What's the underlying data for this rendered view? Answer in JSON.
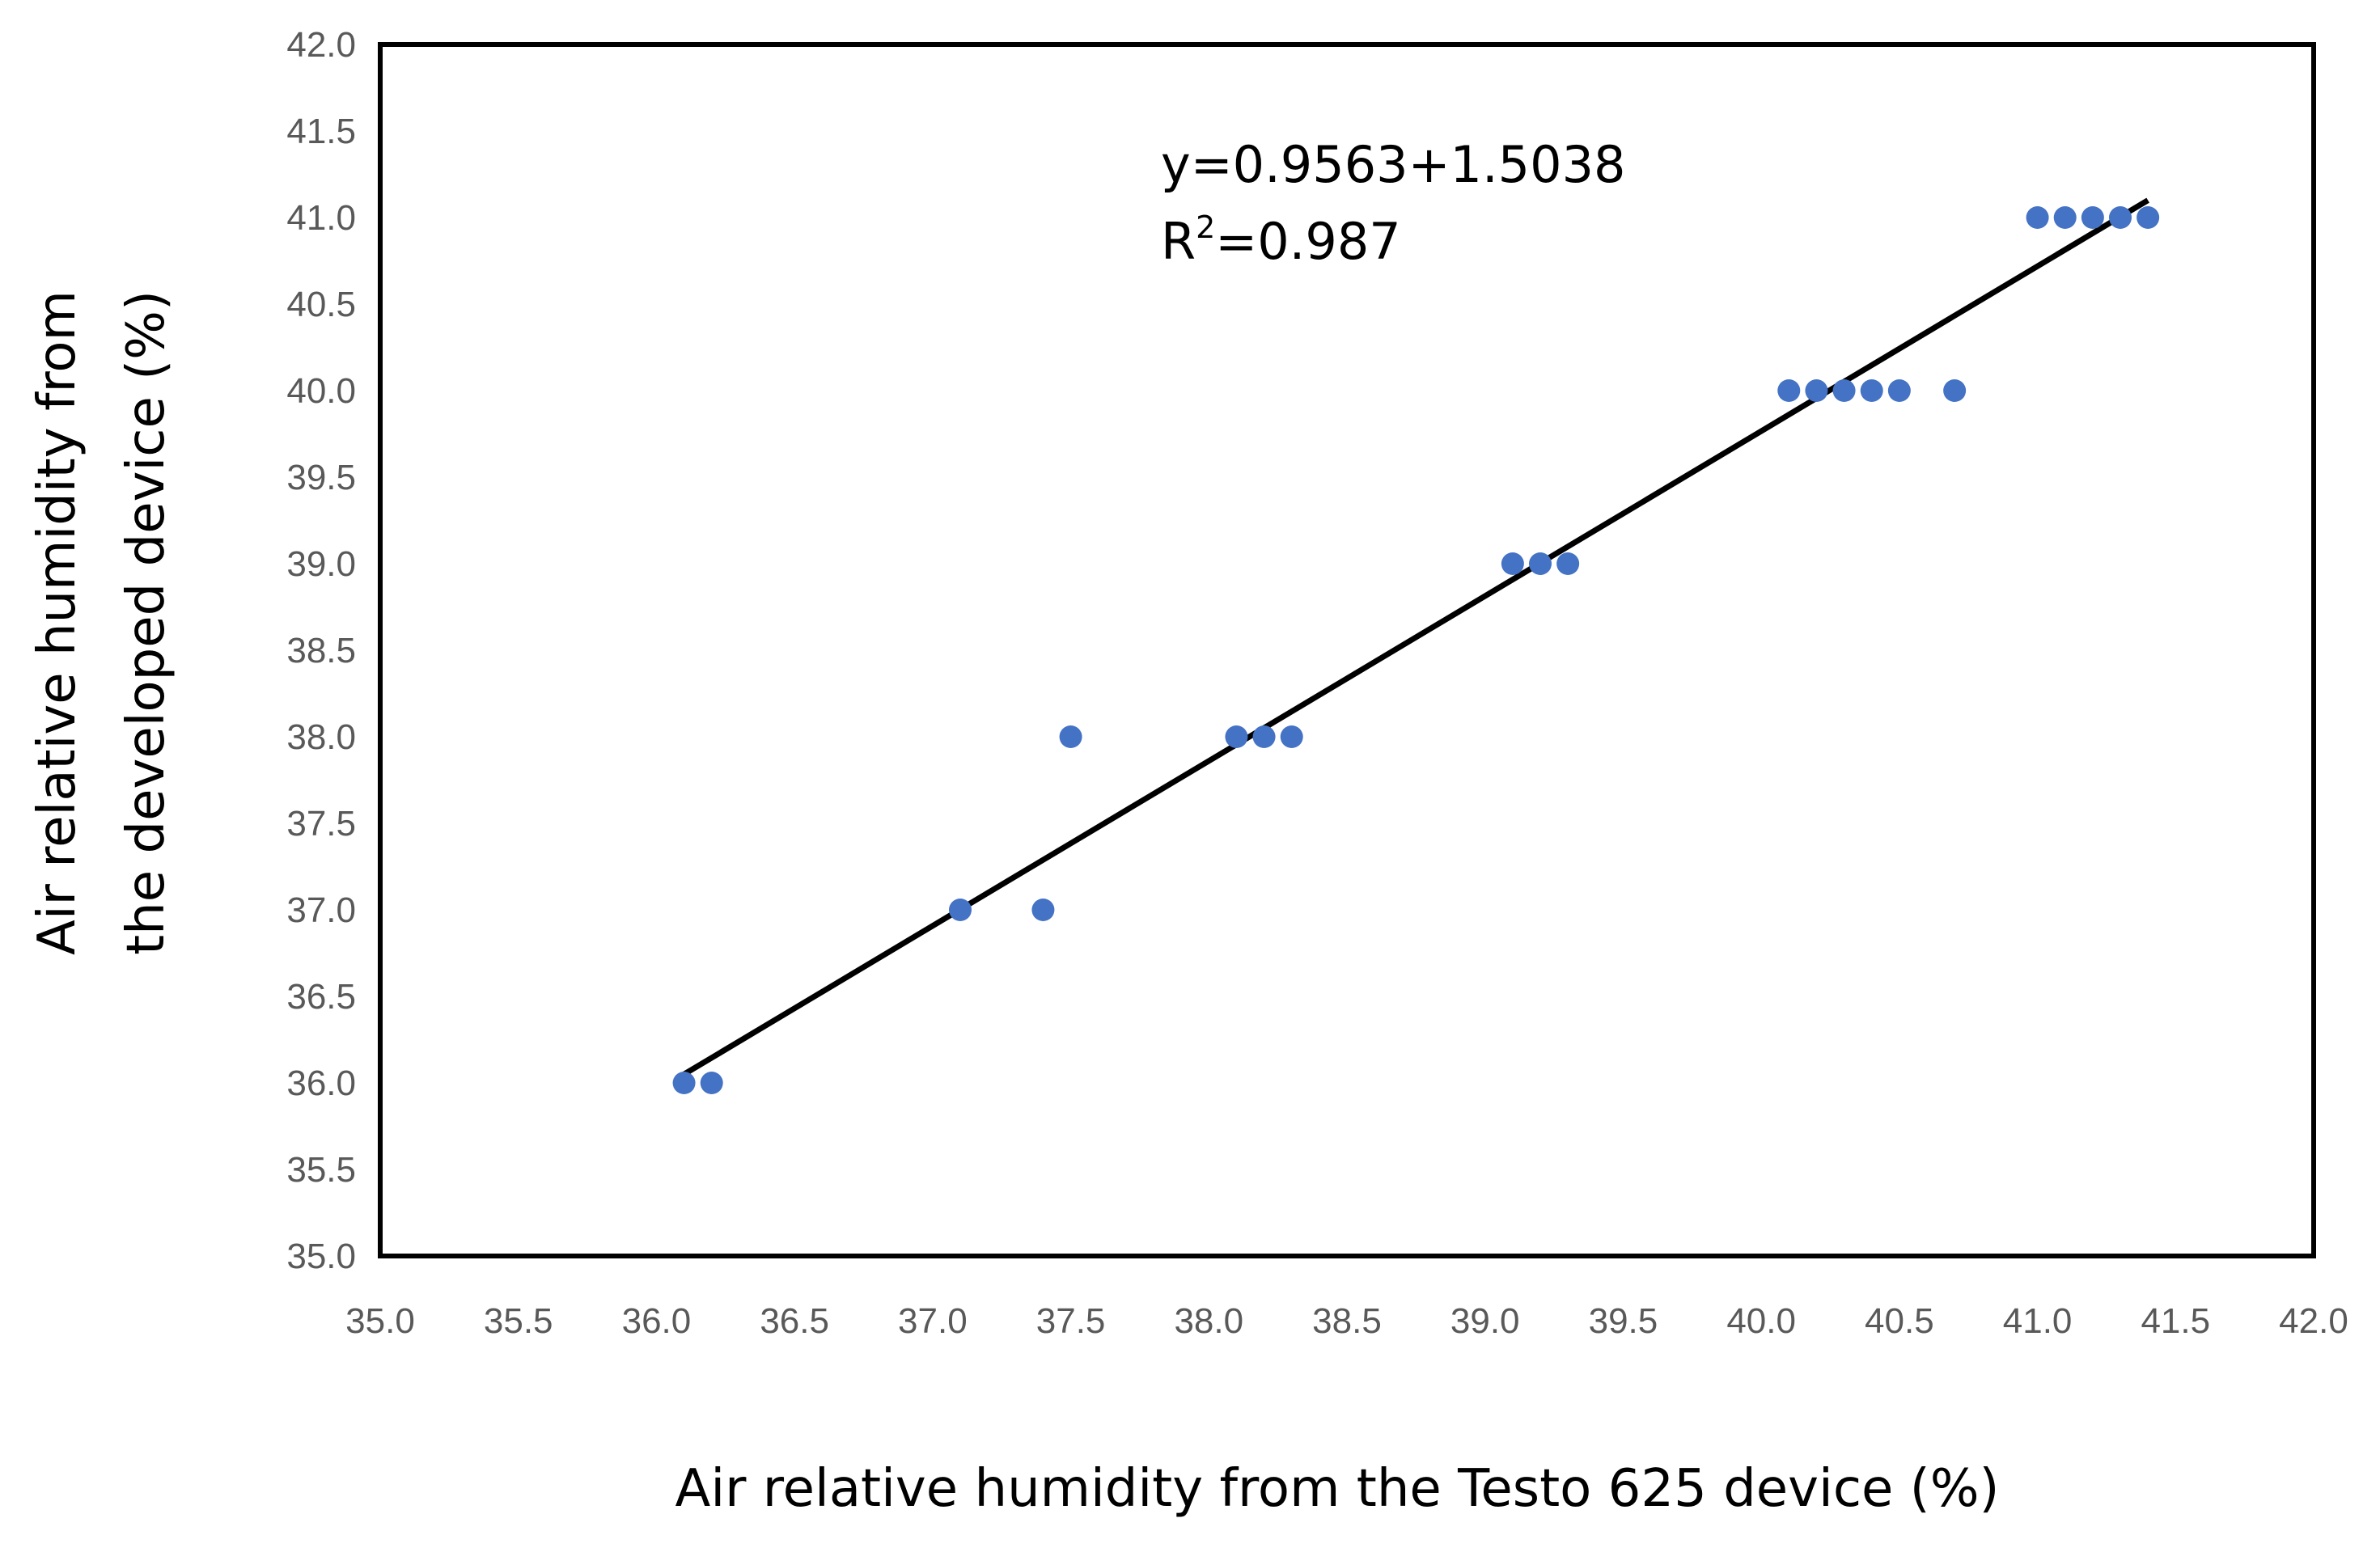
{
  "chart_data": {
    "type": "scatter",
    "xlabel": "Air relative humidity from the Testo 625 device (%)",
    "ylabel": [
      "Air relative humidity from",
      "the developed device (%)"
    ],
    "xlim": [
      35.0,
      42.0
    ],
    "ylim": [
      35.0,
      42.0
    ],
    "x_ticks": [
      "35.0",
      "35.5",
      "36.0",
      "36.5",
      "37.0",
      "37.5",
      "38.0",
      "38.5",
      "39.0",
      "39.5",
      "40.0",
      "40.5",
      "41.0",
      "41.5",
      "42.0"
    ],
    "y_ticks": [
      "35.0",
      "35.5",
      "36.0",
      "36.5",
      "37.0",
      "37.5",
      "38.0",
      "38.5",
      "39.0",
      "39.5",
      "40.0",
      "40.5",
      "41.0",
      "41.5",
      "42.0"
    ],
    "grid": false,
    "marker_color": "#4472C4",
    "trendline_color": "#000000",
    "points": [
      {
        "x": 36.1,
        "y": 36.0
      },
      {
        "x": 36.2,
        "y": 36.0
      },
      {
        "x": 37.1,
        "y": 37.0
      },
      {
        "x": 37.4,
        "y": 37.0
      },
      {
        "x": 37.5,
        "y": 38.0
      },
      {
        "x": 38.1,
        "y": 38.0
      },
      {
        "x": 38.2,
        "y": 38.0
      },
      {
        "x": 38.3,
        "y": 38.0
      },
      {
        "x": 39.1,
        "y": 39.0
      },
      {
        "x": 39.2,
        "y": 39.0
      },
      {
        "x": 39.3,
        "y": 39.0
      },
      {
        "x": 40.1,
        "y": 40.0
      },
      {
        "x": 40.2,
        "y": 40.0
      },
      {
        "x": 40.3,
        "y": 40.0
      },
      {
        "x": 40.4,
        "y": 40.0
      },
      {
        "x": 40.5,
        "y": 40.0
      },
      {
        "x": 40.7,
        "y": 40.0
      },
      {
        "x": 41.0,
        "y": 41.0
      },
      {
        "x": 41.1,
        "y": 41.0
      },
      {
        "x": 41.2,
        "y": 41.0
      },
      {
        "x": 41.3,
        "y": 41.0
      },
      {
        "x": 41.4,
        "y": 41.0
      }
    ],
    "trendline": {
      "x": [
        36.1,
        41.4
      ],
      "y": [
        36.05,
        41.1
      ]
    },
    "annotation": {
      "equation": "y=0.9563+1.5038",
      "r2_prefix": "R",
      "r2_sup": "2",
      "r2_value": "=0.987"
    }
  }
}
